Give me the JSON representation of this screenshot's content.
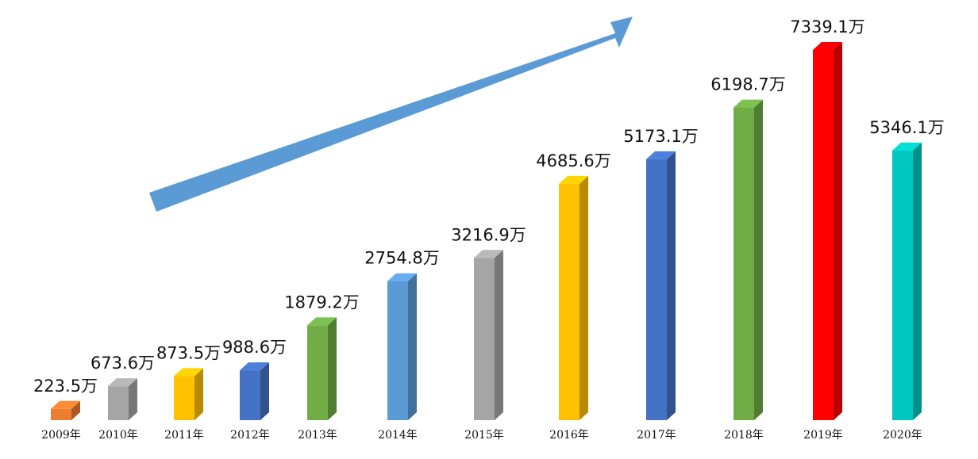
{
  "chart_data": {
    "type": "bar",
    "title": "",
    "xlabel": "",
    "ylabel": "",
    "categories": [
      "2009年",
      "2010年",
      "2011年",
      "2012年",
      "2013年",
      "2014年",
      "2015年",
      "2016年",
      "2017年",
      "2018年",
      "2019年",
      "2020年"
    ],
    "values": [
      223.5,
      673.6,
      873.5,
      988.6,
      1879.2,
      2754.8,
      3216.9,
      4685.6,
      5173.1,
      6198.7,
      7339.1,
      5346.1
    ],
    "value_labels": [
      "223.5万",
      "673.6万",
      "873.5万",
      "988.6万",
      "1879.2万",
      "2754.8万",
      "3216.9万",
      "4685.6万",
      "5173.1万",
      "6198.7万",
      "7339.1万",
      "5346.1万"
    ],
    "bar_colors": [
      "#ED7D31",
      "#A5A5A5",
      "#FFC000",
      "#4472C4",
      "#70AD47",
      "#5B9BD5",
      "#A5A5A5",
      "#FFC000",
      "#4472C4",
      "#70AD47",
      "#FF0000",
      "#00C8C0"
    ],
    "arrow_color": "#5B9BD5",
    "grid": false,
    "legend": "none",
    "style": "3d-columns-with-trend-arrow"
  }
}
